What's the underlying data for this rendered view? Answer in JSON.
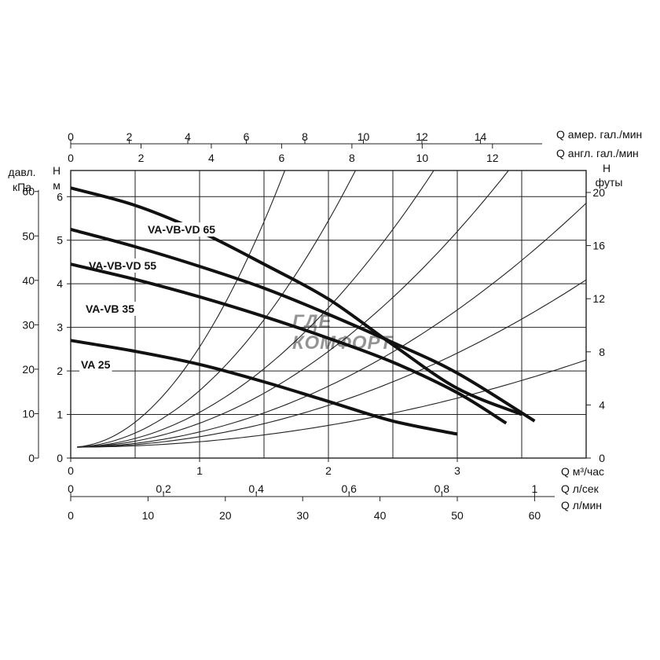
{
  "chart_data": {
    "type": "line",
    "title": "",
    "watermark": [
      "ГДЕ",
      "КОМФОРТ"
    ],
    "x_axes": {
      "primary": {
        "label": "Q м³/час",
        "range": [
          0,
          4
        ],
        "ticks": [
          0,
          1,
          2,
          3
        ]
      },
      "secondary": [
        {
          "label": "Q л/сек",
          "ticks": [
            "0",
            "0,2",
            "0,4",
            "0,6",
            "0,8",
            "1"
          ],
          "values": [
            0,
            0.2,
            0.4,
            0.6,
            0.8,
            1
          ]
        },
        {
          "label": "Q л/мин",
          "ticks": [
            "0",
            "10",
            "20",
            "30",
            "40",
            "50",
            "60"
          ],
          "values": [
            0,
            10,
            20,
            30,
            40,
            50,
            60
          ]
        },
        {
          "label": "Q амер. гал./мин",
          "ticks": [
            "0",
            "2",
            "4",
            "6",
            "8",
            "10",
            "12",
            "14"
          ],
          "values": [
            0,
            2,
            4,
            6,
            8,
            10,
            12,
            14
          ]
        },
        {
          "label": "Q англ. гал./мин",
          "ticks": [
            "0",
            "2",
            "4",
            "6",
            "8",
            "10",
            "12"
          ],
          "values": [
            0,
            2,
            4,
            6,
            8,
            10,
            12
          ]
        }
      ]
    },
    "y_axes": {
      "primary": {
        "label_top": "H",
        "label_bottom": "м",
        "range": [
          0,
          6.6
        ],
        "ticks": [
          0,
          1,
          2,
          3,
          4,
          5,
          6
        ]
      },
      "pressure": {
        "label_top": "давл.",
        "label_bottom": "кПа",
        "ticks": [
          "0",
          "10",
          "20",
          "30",
          "40",
          "50",
          "60"
        ],
        "values": [
          0,
          10,
          20,
          30,
          40,
          50,
          60
        ]
      },
      "feet": {
        "label_top": "H",
        "label_bottom": "футы",
        "ticks": [
          "0",
          "4",
          "8",
          "12",
          "16",
          "20"
        ],
        "values": [
          0,
          4,
          8,
          12,
          16,
          20
        ]
      }
    },
    "grid": true,
    "series": [
      {
        "name": "VA-VB-VD 65",
        "x": [
          0,
          0.5,
          1.0,
          1.5,
          2.0,
          2.5,
          3.0,
          3.5
        ],
        "y": [
          6.2,
          5.8,
          5.2,
          4.45,
          3.65,
          2.6,
          1.6,
          1.0
        ]
      },
      {
        "name": "VA-VB-VD 55",
        "x": [
          0,
          0.5,
          1.0,
          1.5,
          2.0,
          2.5,
          3.0,
          3.6
        ],
        "y": [
          5.25,
          4.85,
          4.4,
          3.9,
          3.3,
          2.65,
          1.95,
          0.85
        ]
      },
      {
        "name": "VA-VB 35",
        "x": [
          0,
          0.5,
          1.0,
          1.5,
          2.0,
          2.5,
          3.0,
          3.38
        ],
        "y": [
          4.45,
          4.1,
          3.7,
          3.25,
          2.75,
          2.2,
          1.5,
          0.8
        ]
      },
      {
        "name": "VA 25",
        "x": [
          0,
          0.5,
          1.0,
          1.5,
          2.0,
          2.5,
          3.0
        ],
        "y": [
          2.7,
          2.45,
          2.15,
          1.75,
          1.3,
          0.85,
          0.55
        ]
      }
    ],
    "system_curves": {
      "k": [
        2.3,
        1.3,
        0.8,
        0.55,
        0.35,
        0.24,
        0.125
      ]
    }
  }
}
